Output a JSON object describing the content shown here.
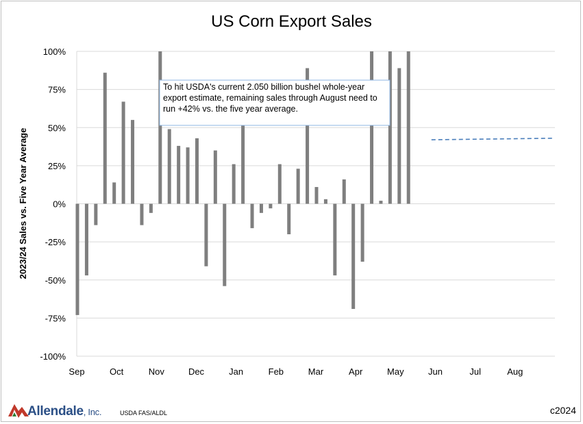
{
  "chart_data": {
    "type": "bar",
    "title": "US Corn Export Sales",
    "ylabel": "2023/24 Sales vs. Five Year Average",
    "xlabel": "",
    "ylim": [
      -100,
      100
    ],
    "yticks": [
      "-100%",
      "-75%",
      "-50%",
      "-25%",
      "0%",
      "25%",
      "50%",
      "75%",
      "100%"
    ],
    "ytick_values": [
      -100,
      -75,
      -50,
      -25,
      0,
      25,
      50,
      75,
      100
    ],
    "month_labels": [
      "Sep",
      "Oct",
      "Nov",
      "Dec",
      "Jan",
      "Feb",
      "Mar",
      "Apr",
      "May",
      "Jun",
      "Jul",
      "Aug"
    ],
    "weeks_total": 52,
    "values": [
      -73,
      -47,
      -14,
      86,
      14,
      67,
      55,
      -14,
      -6,
      100,
      49,
      38,
      37,
      43,
      -41,
      35,
      -54,
      26,
      52,
      -16,
      -6,
      -3,
      26,
      -20,
      23,
      89,
      11,
      3,
      -47,
      16,
      -69,
      -38,
      100,
      2,
      100,
      89,
      100
    ],
    "projection": {
      "value_start": 42,
      "value_end": 43,
      "start_week": 38.5,
      "end_week": 52
    },
    "annotation": "To hit USDA's current 2.050 billion bushel whole-year export estimate, remaining sales through August need to run +42% vs. the five year average.",
    "grid": true,
    "bar_color": "#7f7f7f",
    "projection_color": "#4a7ebb"
  },
  "footer": {
    "logo_name": "Allendale",
    "logo_suffix": ", Inc.",
    "source": "USDA FAS/ALDL",
    "year": "c2024"
  }
}
